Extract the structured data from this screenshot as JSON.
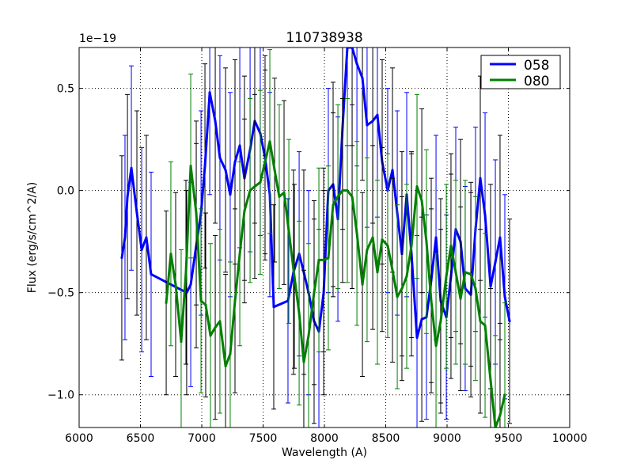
{
  "chart_data": {
    "type": "line",
    "title": "110738938",
    "xlabel": "Wavelength (A)",
    "ylabel": "Flux (erg/s/cm^2/A)",
    "y_offset_label": "1e−19",
    "xlim": [
      6000,
      10000
    ],
    "ylim": [
      -1.16,
      0.7
    ],
    "xticks": [
      6000,
      6500,
      7000,
      7500,
      8000,
      8500,
      9000,
      9500,
      10000
    ],
    "xtick_labels": [
      "6000",
      "6500",
      "7000",
      "7500",
      "8000",
      "8500",
      "9000",
      "9500",
      "10000"
    ],
    "yticks": [
      -1.0,
      -0.5,
      0.0,
      0.5
    ],
    "ytick_labels": [
      "−1.0",
      "−0.5",
      "0.0",
      "0.5"
    ],
    "grid": true,
    "legend_position": "top-right",
    "series": [
      {
        "name": "058",
        "color": "#0000ff",
        "yerr": 0.5,
        "x": [
          6348,
          6374,
          6394,
          6426,
          6471,
          6510,
          6548,
          6587,
          6877,
          6910,
          6955,
          6994,
          7026,
          7065,
          7110,
          7148,
          7194,
          7232,
          7271,
          7310,
          7348,
          7394,
          7432,
          7477,
          7516,
          7555,
          7587,
          7703,
          7748,
          7794,
          7832,
          7871,
          7916,
          7955,
          7994,
          8032,
          8071,
          8110,
          8148,
          8187,
          8226,
          8265,
          8310,
          8348,
          8394,
          8432,
          8471,
          8516,
          8555,
          8594,
          8632,
          8671,
          8710,
          8755,
          8794,
          8832,
          8871,
          8910,
          8948,
          8994,
          9032,
          9071,
          9110,
          9148,
          9194,
          9232,
          9271,
          9310,
          9355,
          9394,
          9432,
          9471,
          9510
        ],
        "y": [
          -0.33,
          -0.23,
          -0.03,
          0.11,
          -0.11,
          -0.29,
          -0.23,
          -0.41,
          -0.5,
          -0.46,
          -0.27,
          -0.11,
          0.12,
          0.48,
          0.34,
          0.16,
          0.1,
          -0.02,
          0.14,
          0.22,
          0.06,
          0.2,
          0.34,
          0.28,
          0.16,
          -0.02,
          -0.57,
          -0.54,
          -0.4,
          -0.31,
          -0.4,
          -0.5,
          -0.64,
          -0.69,
          -0.5,
          0.0,
          0.03,
          -0.14,
          0.31,
          0.72,
          0.72,
          0.62,
          0.55,
          0.32,
          0.34,
          0.37,
          0.14,
          0.0,
          0.1,
          -0.11,
          -0.31,
          -0.02,
          -0.31,
          -0.72,
          -0.63,
          -0.62,
          -0.44,
          -0.23,
          -0.54,
          -0.62,
          -0.42,
          -0.19,
          -0.25,
          -0.48,
          -0.51,
          -0.19,
          0.06,
          -0.12,
          -0.47,
          -0.35,
          -0.23,
          -0.52,
          -0.64
        ]
      },
      {
        "name": "080",
        "color": "#008000",
        "yerr": 0.45,
        "x": [
          6710,
          6748,
          6787,
          6832,
          6871,
          6910,
          6955,
          6994,
          7032,
          7071,
          7110,
          7148,
          7194,
          7232,
          7271,
          7310,
          7348,
          7394,
          7432,
          7477,
          7516,
          7555,
          7594,
          7632,
          7671,
          7710,
          7755,
          7794,
          7832,
          7871,
          7916,
          7955,
          7994,
          8032,
          8071,
          8110,
          8148,
          8187,
          8226,
          8265,
          8310,
          8348,
          8394,
          8432,
          8471,
          8516,
          8555,
          8594,
          8632,
          8671,
          8710,
          8755,
          8794,
          8832,
          8871,
          8910,
          8948,
          8994,
          9032,
          9071,
          9110,
          9148,
          9194,
          9232,
          9271,
          9310,
          9355,
          9394,
          9432,
          9471
        ],
        "y": [
          -0.55,
          -0.31,
          -0.46,
          -0.74,
          -0.4,
          0.12,
          -0.11,
          -0.54,
          -0.56,
          -0.71,
          -0.67,
          -0.64,
          -0.86,
          -0.8,
          -0.54,
          -0.31,
          -0.1,
          0.0,
          0.02,
          0.04,
          0.14,
          0.24,
          0.1,
          -0.03,
          -0.01,
          -0.2,
          -0.42,
          -0.6,
          -0.84,
          -0.71,
          -0.5,
          -0.34,
          -0.34,
          -0.33,
          -0.07,
          -0.03,
          0.0,
          0.0,
          -0.03,
          -0.21,
          -0.46,
          -0.29,
          -0.23,
          -0.4,
          -0.24,
          -0.27,
          -0.39,
          -0.52,
          -0.48,
          -0.42,
          -0.27,
          0.02,
          -0.05,
          -0.25,
          -0.54,
          -0.76,
          -0.64,
          -0.42,
          -0.27,
          -0.4,
          -0.53,
          -0.4,
          -0.41,
          -0.48,
          -0.64,
          -0.66,
          -0.93,
          -1.16,
          -1.1,
          -1.0
        ]
      }
    ]
  }
}
